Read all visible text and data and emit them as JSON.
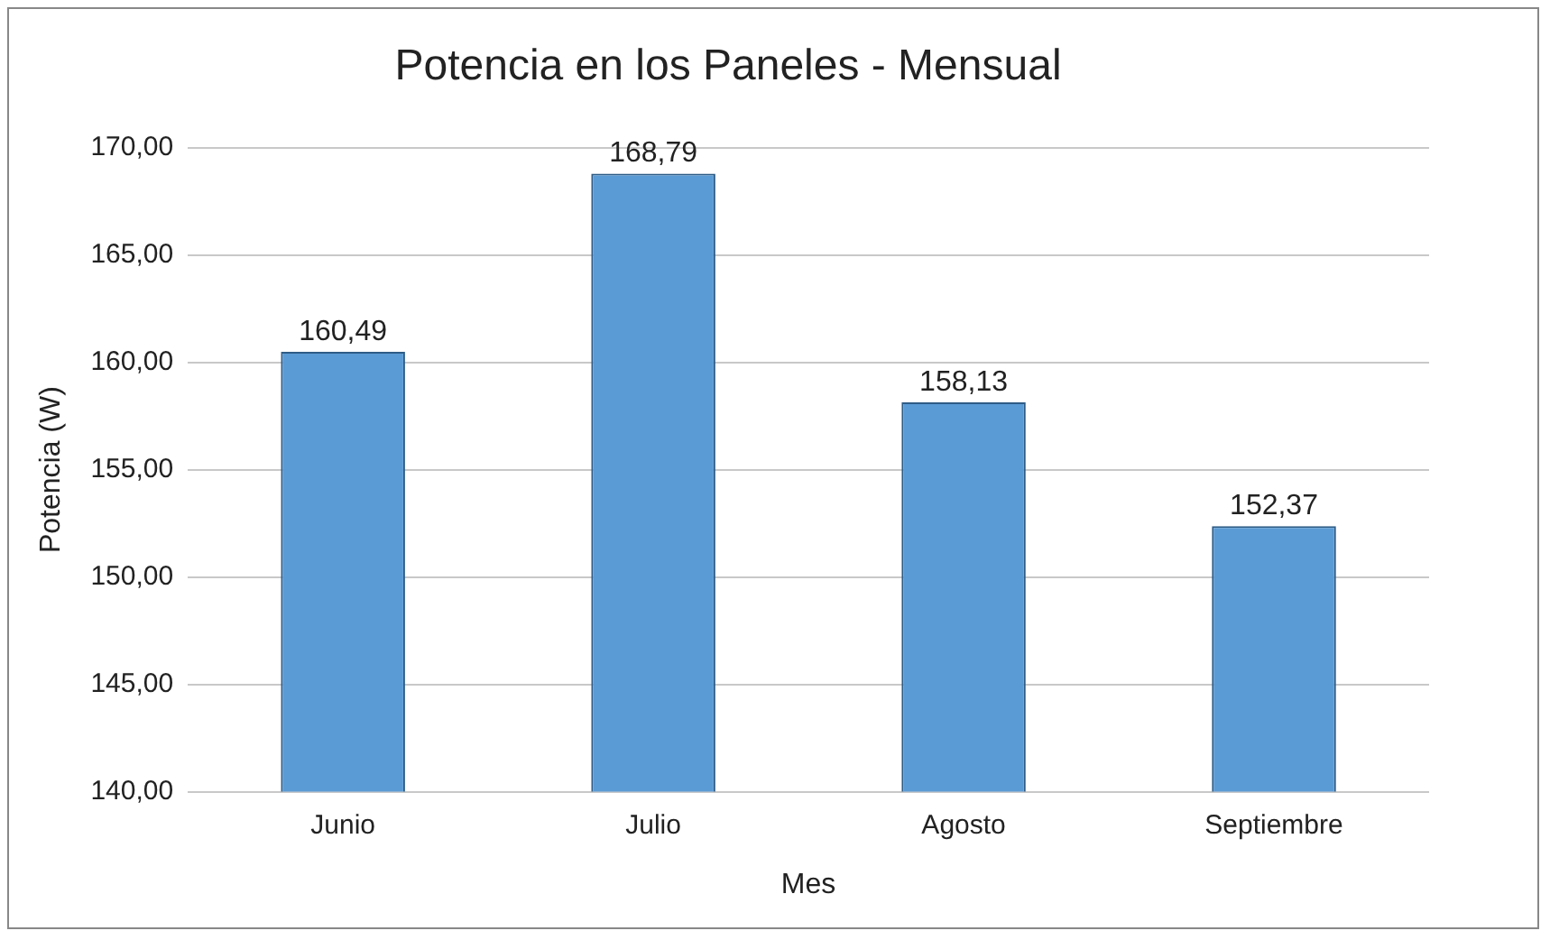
{
  "chart_data": {
    "type": "bar",
    "title": "Potencia en los Paneles - Mensual",
    "xlabel": "Mes",
    "ylabel": "Potencia (W)",
    "categories": [
      "Junio",
      "Julio",
      "Agosto",
      "Septiembre"
    ],
    "values": [
      160.49,
      168.79,
      158.13,
      152.37
    ],
    "value_labels": [
      "160,49",
      "168,79",
      "158,13",
      "152,37"
    ],
    "color": "#5b9bd5",
    "ylim": [
      140,
      170
    ],
    "yticks": [
      {
        "value": 140,
        "label": "140,00"
      },
      {
        "value": 145,
        "label": "145,00"
      },
      {
        "value": 150,
        "label": "150,00"
      },
      {
        "value": 155,
        "label": "155,00"
      },
      {
        "value": 160,
        "label": "160,00"
      },
      {
        "value": 165,
        "label": "165,00"
      },
      {
        "value": 170,
        "label": "170,00"
      }
    ],
    "grid": "y"
  }
}
